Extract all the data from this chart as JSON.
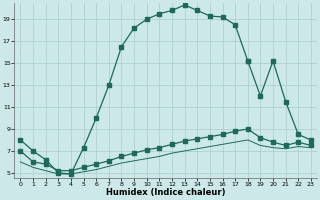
{
  "xlabel": "Humidex (Indice chaleur)",
  "bg_color": "#cce8e8",
  "grid_color": "#aacccc",
  "line_color": "#1a6b5a",
  "ylim": [
    4.5,
    20.5
  ],
  "xlim": [
    -0.5,
    23.5
  ],
  "yticks": [
    5,
    7,
    9,
    11,
    13,
    15,
    17,
    19
  ],
  "xticks": [
    0,
    1,
    2,
    3,
    4,
    5,
    6,
    7,
    8,
    9,
    10,
    11,
    12,
    13,
    14,
    15,
    16,
    17,
    18,
    19,
    20,
    21,
    22,
    23
  ],
  "curve1_x": [
    0,
    1,
    2,
    3,
    4,
    5,
    6,
    7,
    8,
    9,
    10,
    11,
    12,
    13,
    14,
    15,
    16,
    17,
    18
  ],
  "curve1_y": [
    8,
    7,
    6.2,
    5,
    4.9,
    7.3,
    10,
    13,
    16.5,
    18.2,
    19.0,
    19.5,
    19.8,
    20.3,
    19.8,
    19.3,
    19.2,
    18.5,
    15.2
  ],
  "curve2_x": [
    18,
    19,
    20,
    21,
    22,
    23
  ],
  "curve2_y": [
    15.2,
    12.0,
    15.2,
    11.5,
    8.5,
    8.0
  ],
  "curve3_x": [
    0,
    1,
    2,
    3,
    4,
    5,
    6,
    7,
    8,
    9,
    10,
    11,
    12,
    13,
    14,
    15,
    16,
    17,
    18,
    19,
    20,
    21,
    22,
    23
  ],
  "curve3_y": [
    7.0,
    6.0,
    5.8,
    5.2,
    5.2,
    5.5,
    5.8,
    6.1,
    6.5,
    6.8,
    7.1,
    7.3,
    7.6,
    7.9,
    8.1,
    8.3,
    8.5,
    8.8,
    9.0,
    8.2,
    7.8,
    7.5,
    7.8,
    7.5
  ],
  "curve4_x": [
    0,
    1,
    2,
    3,
    4,
    5,
    6,
    7,
    8,
    9,
    10,
    11,
    12,
    13,
    14,
    15,
    16,
    17,
    18,
    19,
    20,
    21,
    22,
    23
  ],
  "curve4_y": [
    6.0,
    5.5,
    5.2,
    4.9,
    4.9,
    5.1,
    5.3,
    5.6,
    5.9,
    6.1,
    6.3,
    6.5,
    6.8,
    7.0,
    7.2,
    7.4,
    7.6,
    7.8,
    8.0,
    7.5,
    7.3,
    7.2,
    7.4,
    7.3
  ]
}
